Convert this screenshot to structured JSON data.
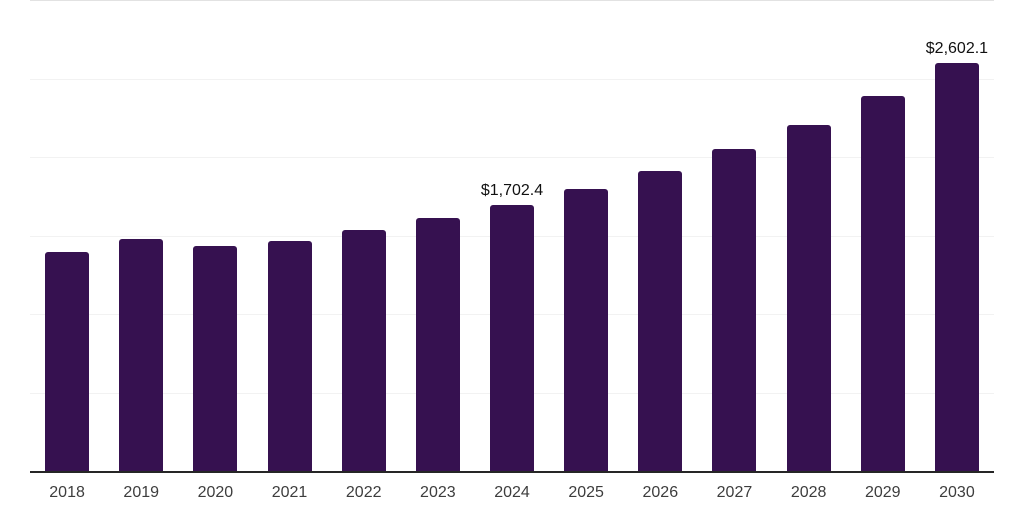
{
  "chart_data": {
    "type": "bar",
    "title": "",
    "xlabel": "",
    "ylabel": "",
    "categories": [
      "2018",
      "2019",
      "2020",
      "2021",
      "2022",
      "2023",
      "2024",
      "2025",
      "2026",
      "2027",
      "2028",
      "2029",
      "2030"
    ],
    "values": [
      1403,
      1486,
      1441,
      1473,
      1543,
      1619,
      1702.4,
      1803,
      1918,
      2057,
      2210,
      2394,
      2602.1
    ],
    "data_labels": [
      "",
      "",
      "",
      "",
      "",
      "",
      "$1,702.4",
      "",
      "",
      "",
      "",
      "",
      "$2,602.1"
    ],
    "ylim": [
      0,
      3000
    ],
    "grid_step": 500,
    "grid": "horizontal",
    "legend": "none",
    "bar_color": "#361150",
    "axis_line_color": "#262626",
    "gridline_color": "#f2f2f2",
    "top_gridline_color": "#e2e2e2",
    "tick_label_color": "#3d3d3d",
    "data_label_color": "#111111"
  }
}
